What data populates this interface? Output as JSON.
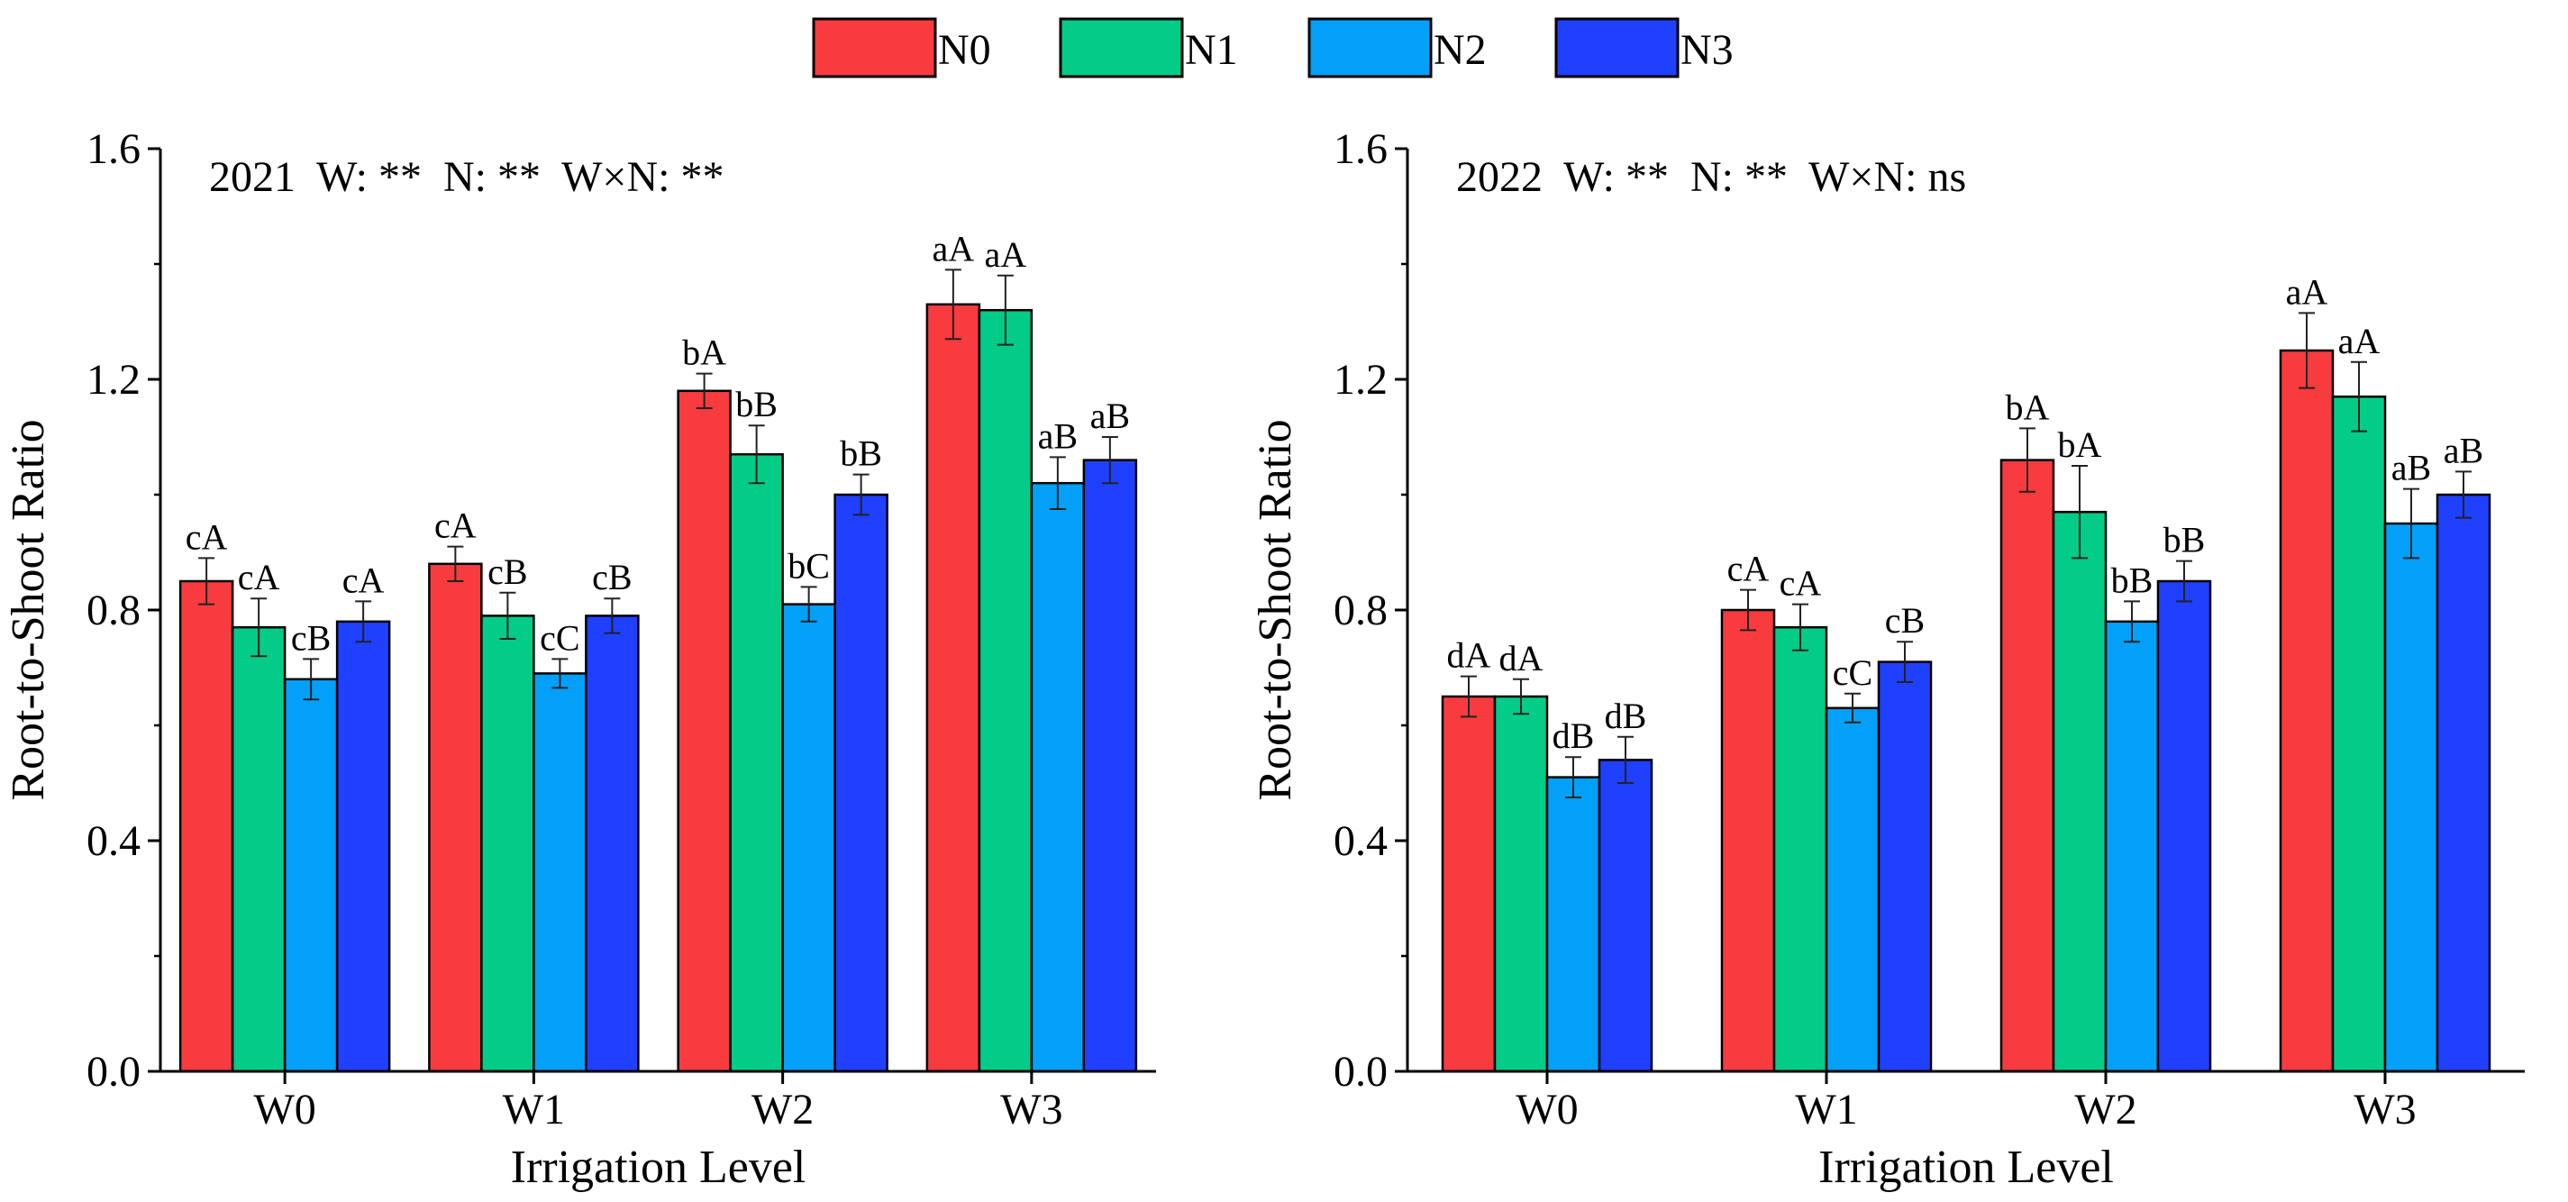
{
  "legend": [
    {
      "name": "N0",
      "color": "#f83b3f"
    },
    {
      "name": "N1",
      "color": "#02cc88"
    },
    {
      "name": "N2",
      "color": "#02a0f8"
    },
    {
      "name": "N3",
      "color": "#2040ff"
    }
  ],
  "chart_data": [
    {
      "type": "bar",
      "panel": "left",
      "annotation": "2021  W: **  N: **  W×N: **",
      "xlabel": "Irrigation Level",
      "ylabel": "Root-to-Shoot Ratio",
      "ylim": [
        0.0,
        1.6
      ],
      "yticks": [
        "0.0",
        "0.4",
        "0.8",
        "1.2",
        "1.6"
      ],
      "categories": [
        "W0",
        "W1",
        "W2",
        "W3"
      ],
      "series": [
        {
          "name": "N0",
          "values": [
            0.85,
            0.88,
            1.18,
            1.33
          ],
          "errors": [
            0.04,
            0.03,
            0.03,
            0.06
          ],
          "labels": [
            "cA",
            "cA",
            "bA",
            "aA"
          ]
        },
        {
          "name": "N1",
          "values": [
            0.77,
            0.79,
            1.07,
            1.32
          ],
          "errors": [
            0.05,
            0.04,
            0.05,
            0.06
          ],
          "labels": [
            "cA",
            "cB",
            "bB",
            "aA"
          ]
        },
        {
          "name": "N2",
          "values": [
            0.68,
            0.69,
            0.81,
            1.02
          ],
          "errors": [
            0.035,
            0.025,
            0.03,
            0.045
          ],
          "labels": [
            "cB",
            "cC",
            "bC",
            "aB"
          ]
        },
        {
          "name": "N3",
          "values": [
            0.78,
            0.79,
            1.0,
            1.06
          ],
          "errors": [
            0.035,
            0.03,
            0.035,
            0.04
          ],
          "labels": [
            "cA",
            "cB",
            "bB",
            "aB"
          ]
        }
      ]
    },
    {
      "type": "bar",
      "panel": "right",
      "annotation": "2022  W: **  N: **  W×N: ns",
      "xlabel": "Irrigation Level",
      "ylabel": "Root-to-Shoot Ratio",
      "ylim": [
        0.0,
        1.6
      ],
      "yticks": [
        "0.0",
        "0.4",
        "0.8",
        "1.2",
        "1.6"
      ],
      "categories": [
        "W0",
        "W1",
        "W2",
        "W3"
      ],
      "series": [
        {
          "name": "N0",
          "values": [
            0.65,
            0.8,
            1.06,
            1.25
          ],
          "errors": [
            0.035,
            0.035,
            0.055,
            0.065
          ],
          "labels": [
            "dA",
            "cA",
            "bA",
            "aA"
          ]
        },
        {
          "name": "N1",
          "values": [
            0.65,
            0.77,
            0.97,
            1.17
          ],
          "errors": [
            0.03,
            0.04,
            0.08,
            0.06
          ],
          "labels": [
            "dA",
            "cA",
            "bA",
            "aA"
          ]
        },
        {
          "name": "N2",
          "values": [
            0.51,
            0.63,
            0.78,
            0.95
          ],
          "errors": [
            0.035,
            0.025,
            0.035,
            0.06
          ],
          "labels": [
            "dB",
            "cC",
            "bB",
            "aB"
          ]
        },
        {
          "name": "N3",
          "values": [
            0.54,
            0.71,
            0.85,
            1.0
          ],
          "errors": [
            0.04,
            0.035,
            0.035,
            0.04
          ],
          "labels": [
            "dB",
            "cB",
            "bB",
            "aB"
          ]
        }
      ]
    }
  ]
}
